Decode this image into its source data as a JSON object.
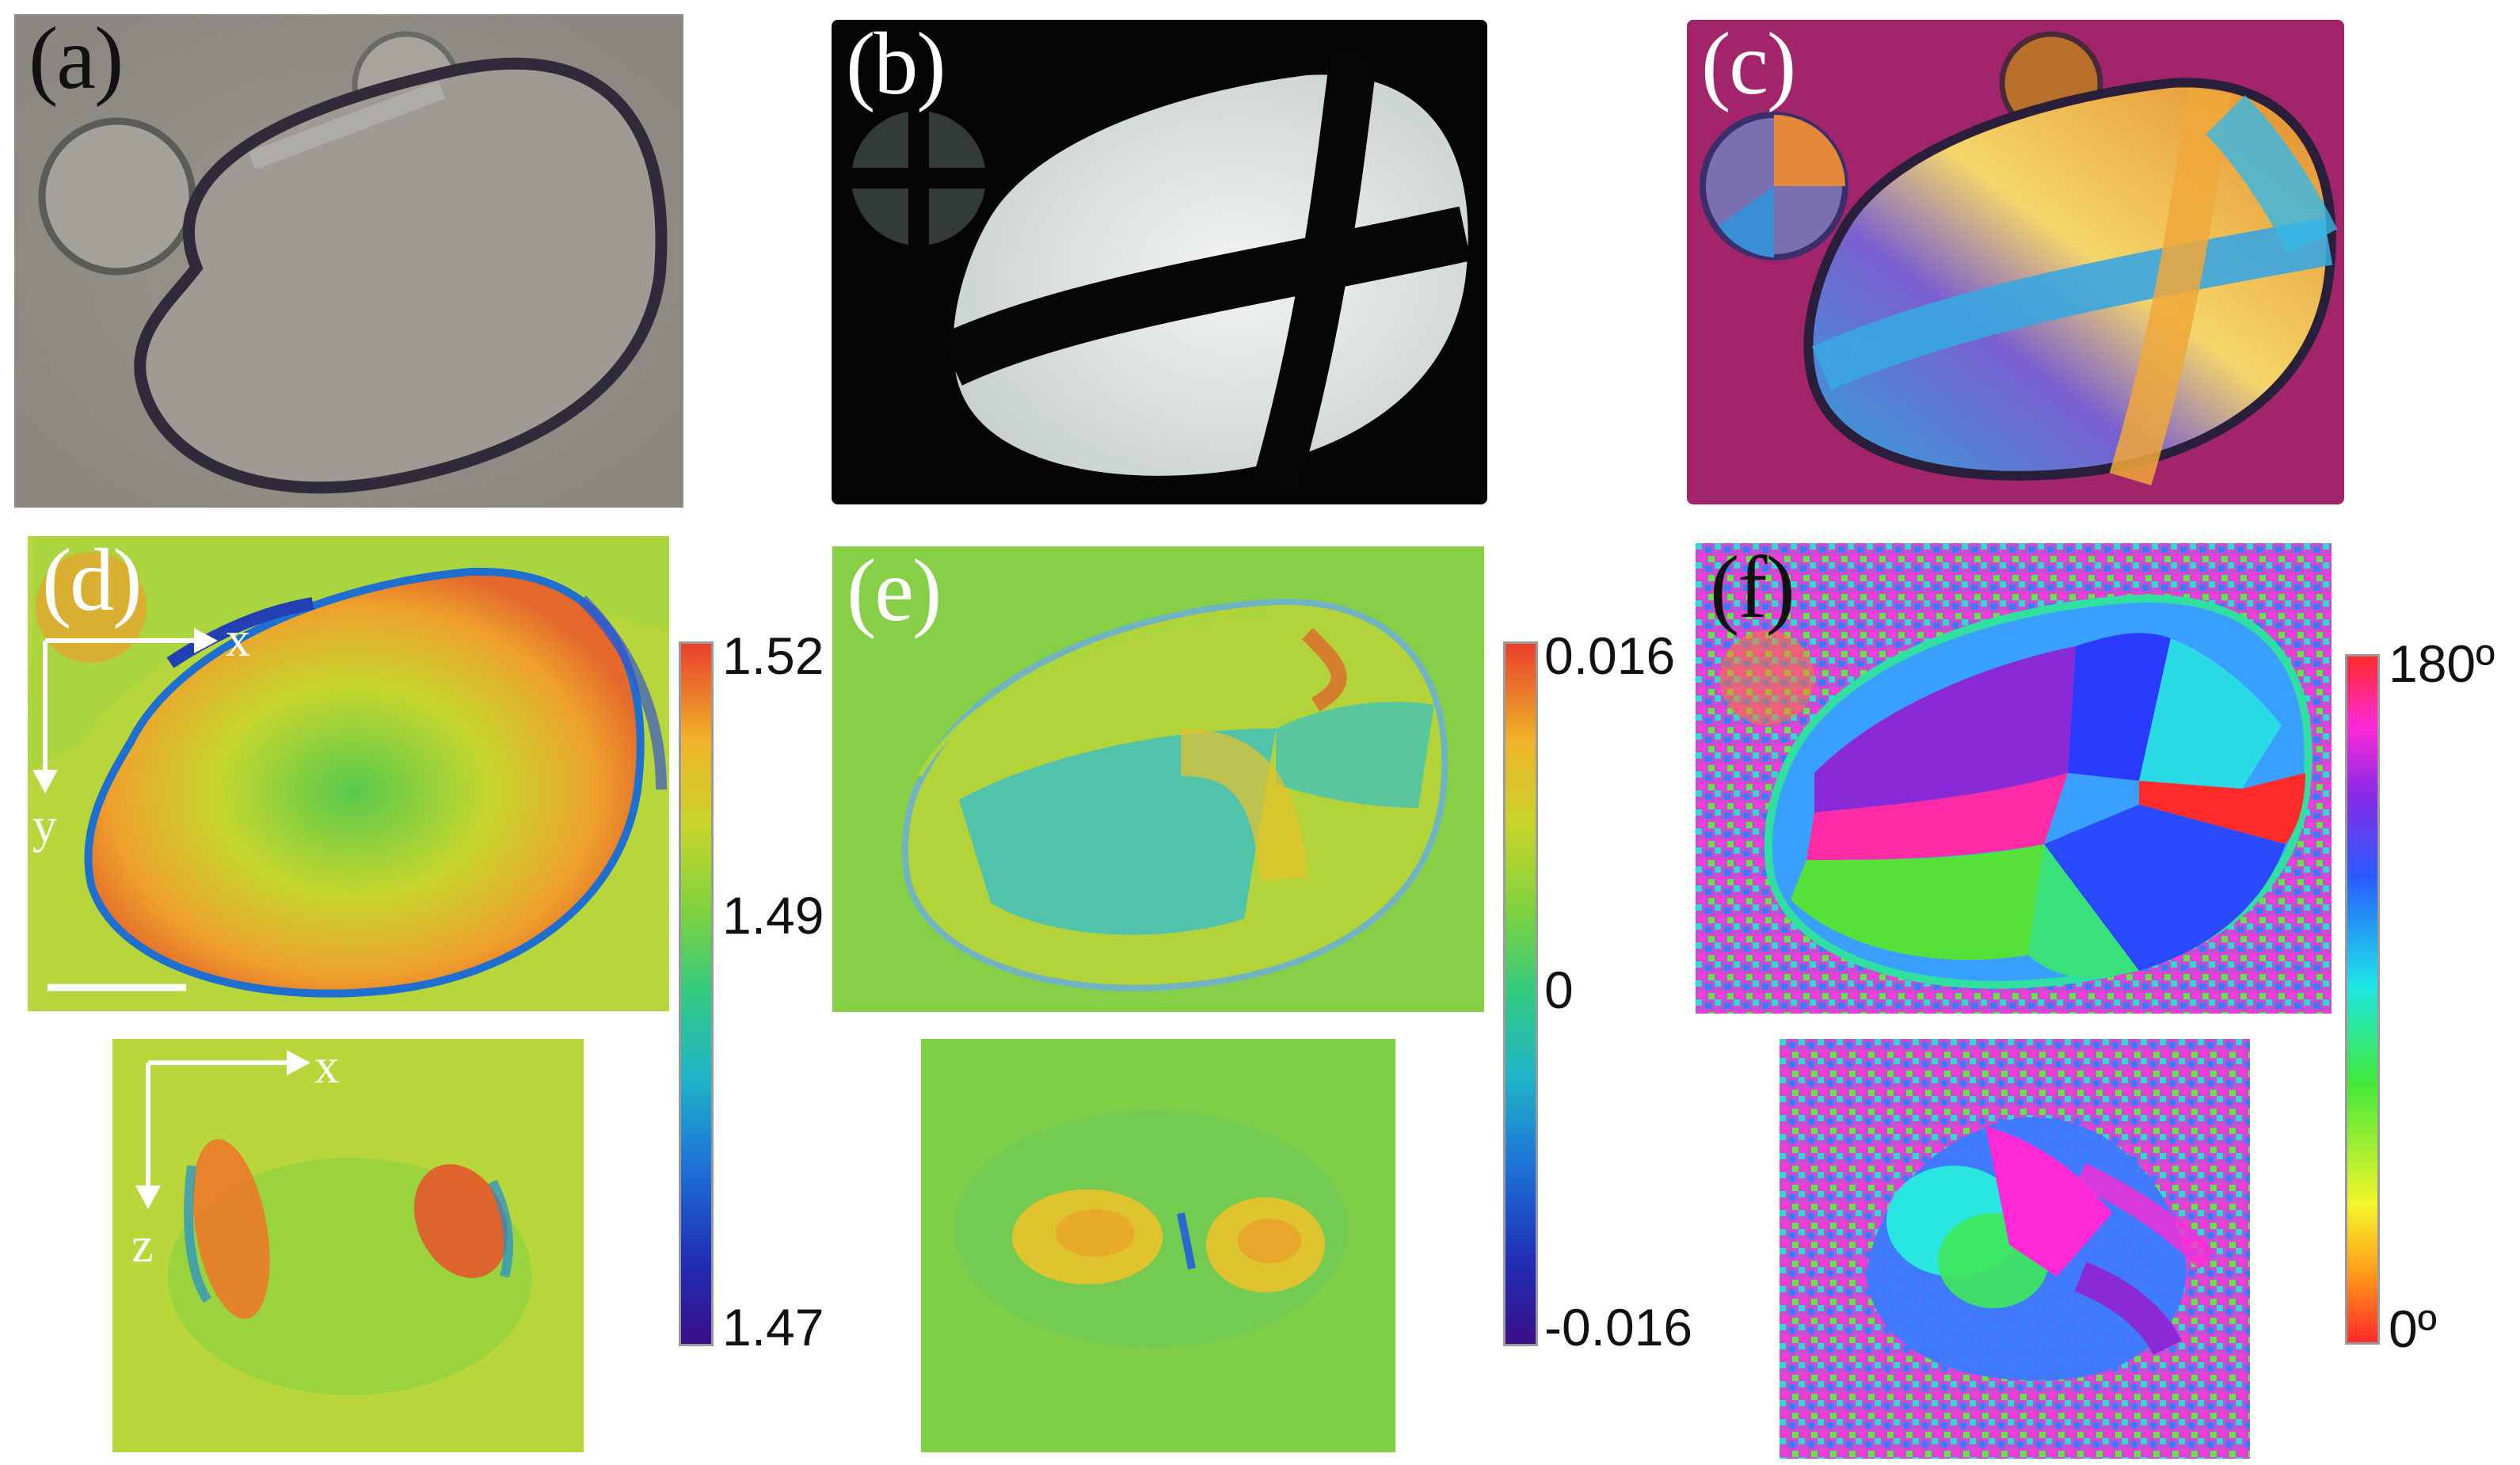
{
  "panels": {
    "a": {
      "label": "(a)"
    },
    "b": {
      "label": "(b)"
    },
    "c": {
      "label": "(c)"
    },
    "d": {
      "label": "(d)",
      "axes_top": {
        "x": "x",
        "y": "y"
      },
      "axes_bottom": {
        "x": "x",
        "z": "z"
      }
    },
    "e": {
      "label": "(e)"
    },
    "f": {
      "label": "(f)"
    }
  },
  "colorbars": {
    "refractive_index": {
      "max": "1.52",
      "mid": "1.49",
      "min": "1.47"
    },
    "birefringence": {
      "max": "0.016",
      "mid": "0",
      "min": "-0.016"
    },
    "orientation": {
      "max": "180º",
      "min": "0º"
    }
  },
  "colors": {
    "jet": [
      "#3b0f87",
      "#1f2fb5",
      "#1e70d6",
      "#1fb4c8",
      "#33c983",
      "#7fd23d",
      "#c8d52b",
      "#f0b42a",
      "#ef7a2a",
      "#e8402a"
    ],
    "hue": [
      "#ff2a2a",
      "#ff9a1a",
      "#f5f52a",
      "#40e83a",
      "#1ee6e6",
      "#2a5aff",
      "#8a2ae6",
      "#ff2ad6",
      "#ff2a2a"
    ]
  }
}
